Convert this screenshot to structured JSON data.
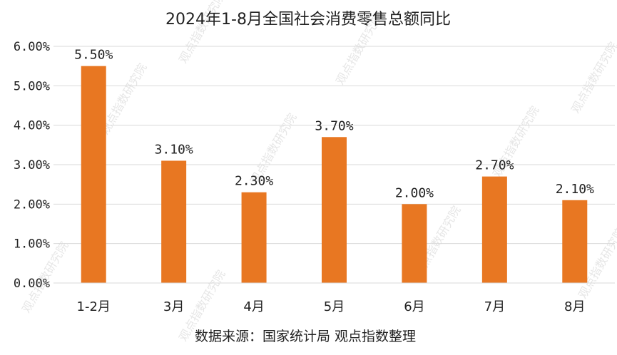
{
  "chart_data": {
    "type": "bar",
    "title": "2024年1-8月全国社会消费零售总额同比",
    "categories": [
      "1-2月",
      "3月",
      "4月",
      "5月",
      "6月",
      "7月",
      "8月"
    ],
    "values": [
      5.5,
      3.1,
      2.3,
      3.7,
      2.0,
      2.7,
      2.1
    ],
    "data_labels": [
      "5.50%",
      "3.10%",
      "2.30%",
      "3.70%",
      "2.00%",
      "2.70%",
      "2.10%"
    ],
    "ylim": [
      0,
      6
    ],
    "yticks": [
      0,
      1,
      2,
      3,
      4,
      5,
      6
    ],
    "ytick_labels": [
      "0.00%",
      "1.00%",
      "2.00%",
      "3.00%",
      "4.00%",
      "5.00%",
      "6.00%"
    ],
    "xlabel": "",
    "ylabel": "",
    "grid": true,
    "legend": "none",
    "bar_color": "#E87722",
    "grid_color": "#d9d9d9"
  },
  "source_text": "数据来源：国家统计局  观点指数整理",
  "watermark_text": "观点指数研究院"
}
